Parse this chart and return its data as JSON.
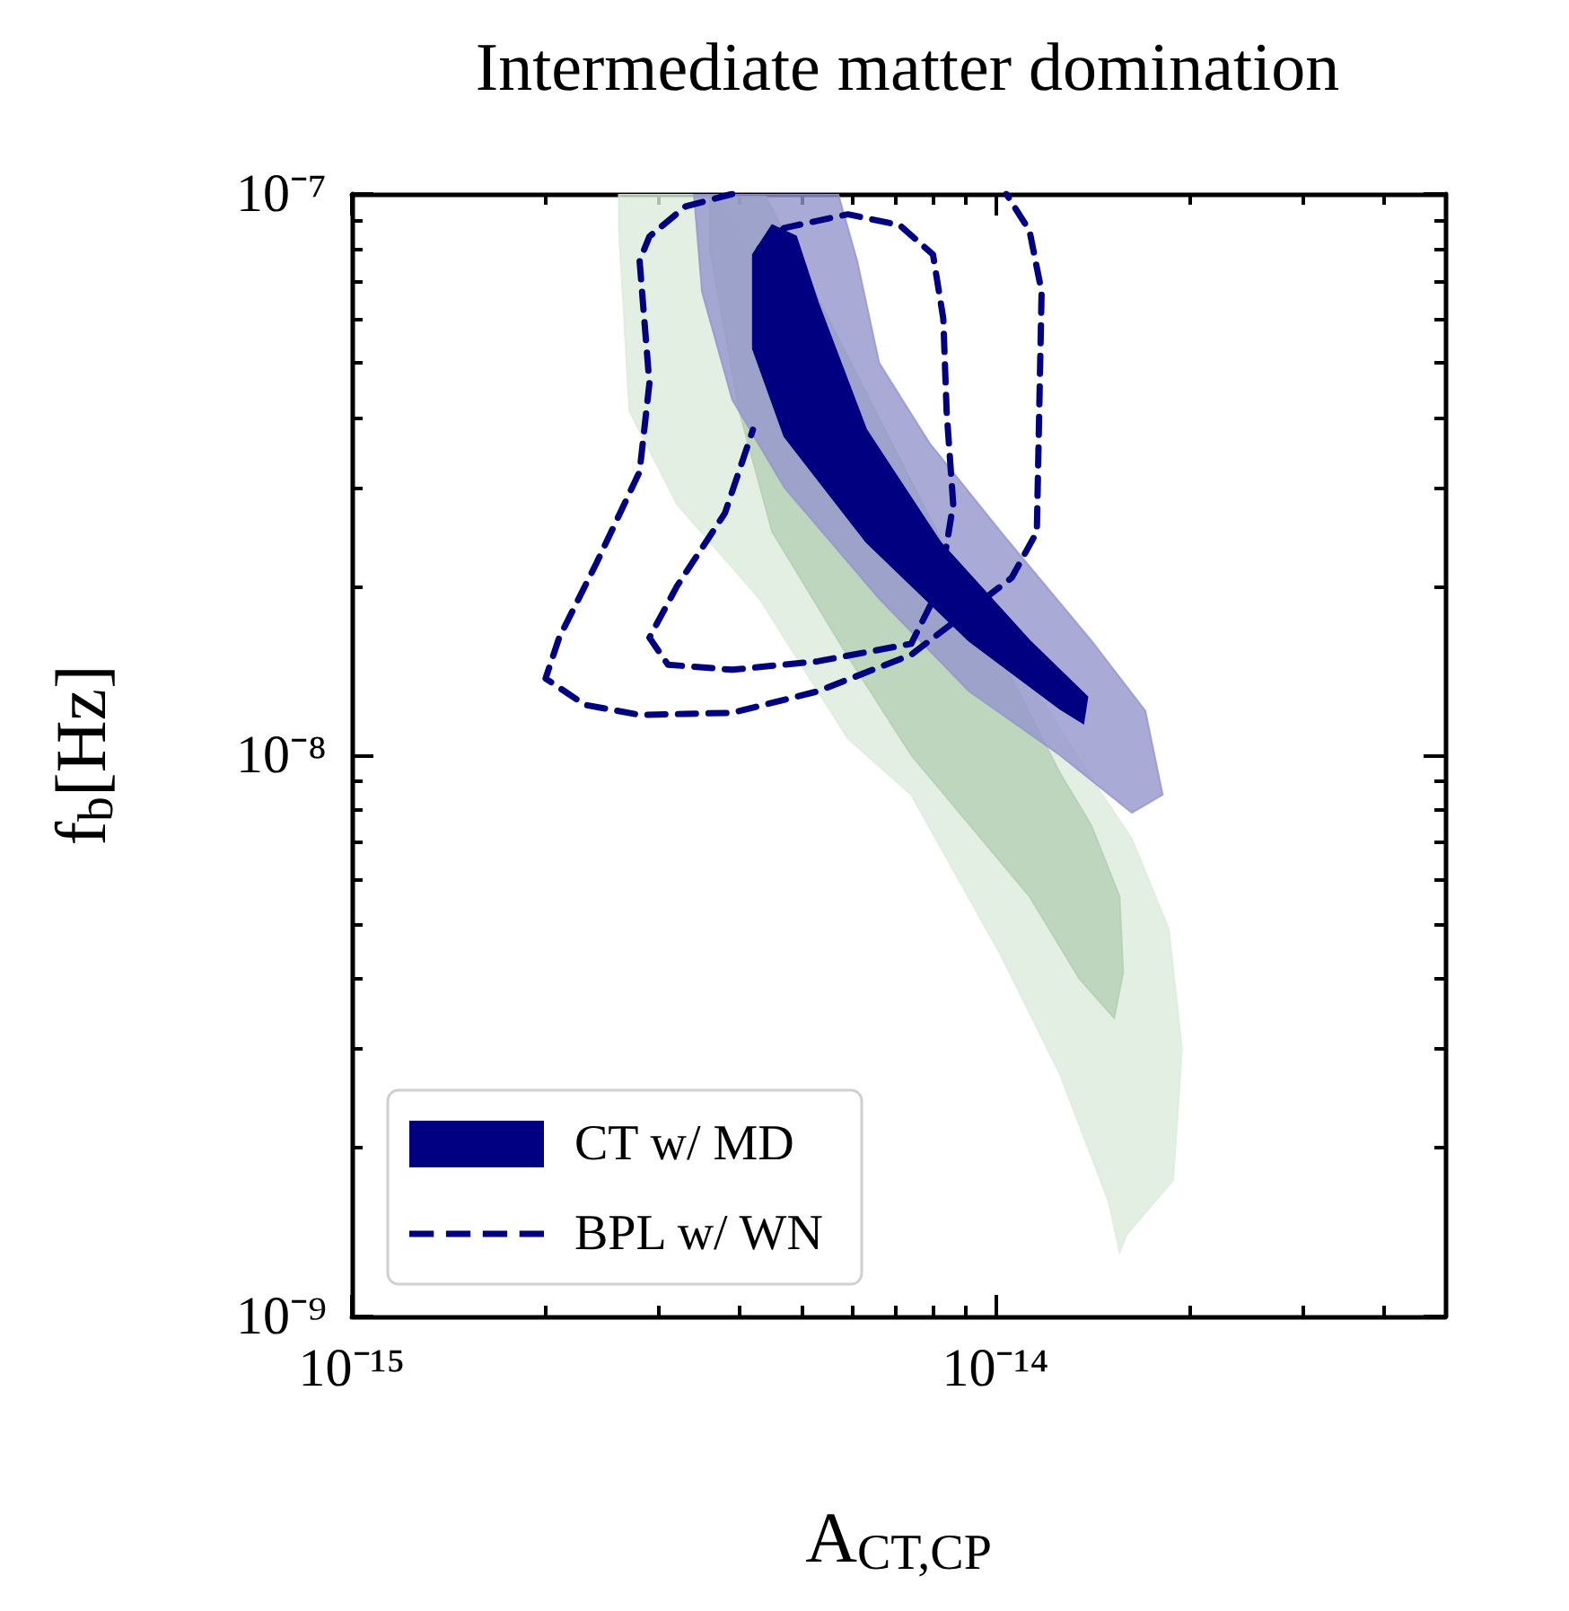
{
  "chart_data": {
    "type": "area",
    "title": "Intermediate matter domination",
    "xlabel": "A$_{CT,CP}$",
    "ylabel": "f$_{b}$[Hz]",
    "log": "xy",
    "grid": false,
    "marker": "none",
    "legend": "bottom left",
    "xlim": [
      1e-15,
      5e-14
    ],
    "ylim": [
      1e-09,
      1e-07
    ],
    "xticks": [
      {
        "value": 1e-15,
        "label": "10⁻¹⁵"
      },
      {
        "value": 2e-15,
        "label": null
      },
      {
        "value": 3e-15,
        "label": null
      },
      {
        "value": 4e-15,
        "label": null
      },
      {
        "value": 5e-15,
        "label": null
      },
      {
        "value": 6e-15,
        "label": null
      },
      {
        "value": 7e-15,
        "label": null
      },
      {
        "value": 8e-15,
        "label": null
      },
      {
        "value": 9e-15,
        "label": null
      },
      {
        "value": 1e-14,
        "label": "10⁻¹⁴"
      },
      {
        "value": 2e-14,
        "label": null
      },
      {
        "value": 3e-14,
        "label": null
      },
      {
        "value": 4e-14,
        "label": null
      }
    ],
    "yticks": [
      {
        "value": 1e-09,
        "label": "10⁻⁹"
      },
      {
        "value": 2e-09,
        "label": null
      },
      {
        "value": 3e-09,
        "label": null
      },
      {
        "value": 4e-09,
        "label": null
      },
      {
        "value": 5e-09,
        "label": null
      },
      {
        "value": 6e-09,
        "label": null
      },
      {
        "value": 7e-09,
        "label": null
      },
      {
        "value": 8e-09,
        "label": null
      },
      {
        "value": 9e-09,
        "label": null
      },
      {
        "value": 1e-08,
        "label": "10⁻⁸"
      },
      {
        "value": 2e-08,
        "label": null
      },
      {
        "value": 3e-08,
        "label": null
      },
      {
        "value": 4e-08,
        "label": null
      },
      {
        "value": 5e-08,
        "label": null
      },
      {
        "value": 6e-08,
        "label": null
      },
      {
        "value": 7e-08,
        "label": null
      },
      {
        "value": 8e-08,
        "label": null
      },
      {
        "value": 9e-08,
        "label": null
      },
      {
        "value": 1e-07,
        "label": "10⁻⁷"
      }
    ],
    "series": [
      {
        "color": "#dcebdc",
        "x": [
          2.6e-15,
          2.6e-15,
          2.7e-15,
          3.2e-15,
          4.3e-15,
          5.9e-15,
          7.4e-15,
          1.02e-14,
          1.26e-14,
          1.5e-14,
          1.56e-14,
          1.6e-14,
          1.89e-14,
          1.95e-14,
          1.86e-14,
          1.63e-14,
          1.41e-14,
          1.04e-14,
          7.1e-15,
          4.8e-15,
          3.7e-15
        ],
        "values": [
          1e-07,
          8.6e-08,
          4.1e-08,
          2.8e-08,
          1.9e-08,
          1.07e-08,
          8.5e-09,
          4.4e-09,
          2.7e-09,
          1.6e-09,
          1.3e-09,
          1.4e-09,
          1.75e-09,
          3e-09,
          4.9e-09,
          7.1e-09,
          9.1e-09,
          null,
          null,
          null,
          1e-07
        ]
      },
      {
        "color": "#b3d0b3",
        "x": [
          3.6e-15,
          3.6e-15,
          4e-15,
          4.5e-15,
          5.9e-15,
          7.4e-15,
          9.7e-15,
          1.13e-14,
          1.35e-14,
          1.53e-14,
          1.58e-14,
          1.56e-14,
          1.41e-14,
          1.26e-14,
          9.1e-15,
          6.2e-15,
          4.8e-15,
          4.4e-15
        ],
        "values": [
          9.9e-08,
          8e-08,
          4.1e-08,
          2.5e-08,
          1.5e-08,
          1e-08,
          6.9e-09,
          5.6e-09,
          4e-09,
          3.4e-09,
          4.1e-09,
          5.6e-09,
          7.5e-09,
          9.3e-09,
          null,
          null,
          null,
          9.9e-08
        ]
      },
      {
        "color": "#9395cc",
        "x": [
          3.4e-15,
          3.5e-15,
          3.9e-15,
          4.7e-15,
          6.6e-15,
          9.1e-15,
          1.26e-14,
          1.63e-14,
          1.82e-14,
          1.71e-14,
          1.41e-14,
          1.02e-14,
          7.9e-15,
          6.6e-15,
          6.1e-15,
          5.7e-15
        ],
        "values": [
          1e-07,
          6.7e-08,
          4.3e-08,
          3e-08,
          1.9e-08,
          1.3e-08,
          1e-08,
          7.9e-09,
          8.5e-09,
          1.2e-08,
          1.6e-08,
          2.5e-08,
          3.6e-08,
          5e-08,
          7.6e-08,
          1e-07
        ]
      },
      {
        "name": "CT w/ MD",
        "color": "#000080",
        "x": [
          4.5e-15,
          4.2e-15,
          4.2e-15,
          4.7e-15,
          6.3e-15,
          9.1e-15,
          1.26e-14,
          1.37e-14,
          1.39e-14,
          1.13e-14,
          8.2e-15,
          6.3e-15,
          5.3e-15,
          4.9e-15
        ],
        "values": [
          8.8e-08,
          7.8e-08,
          5.3e-08,
          3.7e-08,
          2.4e-08,
          1.6e-08,
          1.21e-08,
          1.14e-08,
          1.27e-08,
          1.6e-08,
          2.4e-08,
          3.8e-08,
          6.4e-08,
          8.4e-08
        ]
      },
      {
        "type": "line",
        "name": "BPL w/ WN",
        "color": "#000080",
        "line_style": "dashed",
        "x": [
          3.9e-15,
          3.3e-15,
          2.9e-15,
          2.8e-15,
          2.9e-15,
          2.8e-15,
          2.4e-15,
          2.1e-15,
          2e-15,
          2.3e-15,
          2.8e-15,
          3.9e-15,
          5.3e-15,
          7.4e-15,
          1.06e-14,
          1.16e-14,
          1.17e-14,
          1.18e-14,
          1.13e-14,
          1.04e-14
        ],
        "values": [
          1e-07,
          9.5e-08,
          8.4e-08,
          7.6e-08,
          4.6e-08,
          3.2e-08,
          2.2e-08,
          1.62e-08,
          1.37e-08,
          1.23e-08,
          1.18e-08,
          1.19e-08,
          1.3e-08,
          1.51e-08,
          2.07e-08,
          2.5e-08,
          4.1e-08,
          6.7e-08,
          8.6e-08,
          1e-07
        ]
      },
      {
        "type": "line",
        "color": "#000080",
        "line_style": "dashed",
        "x": [
          4.3e-15,
          4.7e-15,
          5.9e-15,
          7.1e-15,
          8e-15,
          8.3e-15,
          8.4e-15,
          8.6e-15,
          8.2e-15,
          7.4e-15,
          5.3e-15,
          3.9e-15,
          3.1e-15,
          2.9e-15,
          3.2e-15,
          3.8e-15,
          4.2e-15
        ],
        "values": [
          8e-08,
          8.7e-08,
          9.2e-08,
          8.8e-08,
          7.8e-08,
          6e-08,
          4.1e-08,
          2.8e-08,
          2e-08,
          1.58e-08,
          1.47e-08,
          1.42e-08,
          1.45e-08,
          1.62e-08,
          2e-08,
          2.7e-08,
          3.8e-08
        ]
      }
    ]
  }
}
